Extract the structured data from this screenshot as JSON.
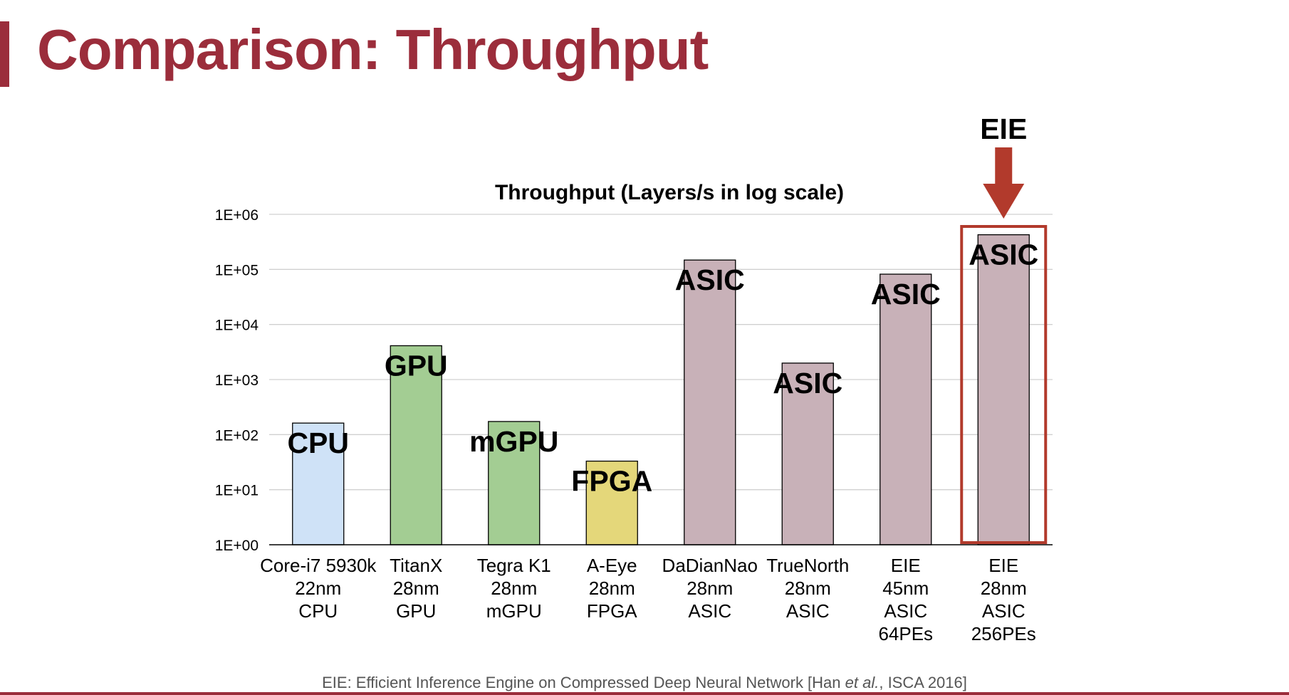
{
  "slide": {
    "title": "Comparison: Throughput",
    "footer_prefix": "EIE: Efficient Inference Engine on Compressed Deep Neural Network [Han ",
    "footer_italic": "et al.",
    "footer_suffix": ", ISCA 2016]"
  },
  "highlight": {
    "label": "EIE",
    "category_index": 7,
    "color": "#b23a2c"
  },
  "chart_data": {
    "type": "bar",
    "title": "Throughput (Layers/s in log scale)",
    "xlabel": "",
    "ylabel": "",
    "y_scale": "log",
    "ylim": [
      1,
      1000000
    ],
    "y_ticks": [
      1,
      10,
      100,
      1000,
      10000,
      100000,
      1000000
    ],
    "y_tick_labels": [
      "1E+00",
      "1E+01",
      "1E+02",
      "1E+03",
      "1E+04",
      "1E+05",
      "1E+06"
    ],
    "grid": true,
    "categories": [
      [
        "Core-i7 5930k",
        "22nm",
        "CPU"
      ],
      [
        "TitanX",
        "28nm",
        "GPU"
      ],
      [
        "Tegra K1",
        "28nm",
        "mGPU"
      ],
      [
        "A-Eye",
        "28nm",
        "FPGA"
      ],
      [
        "DaDianNao",
        "28nm",
        "ASIC"
      ],
      [
        "TrueNorth",
        "28nm",
        "ASIC"
      ],
      [
        "EIE",
        "45nm",
        "ASIC",
        "64PEs"
      ],
      [
        "EIE",
        "28nm",
        "ASIC",
        "256PEs"
      ]
    ],
    "values": [
      162,
      4115,
      173,
      33,
      147938,
      1989,
      81967,
      426230
    ],
    "bar_labels": [
      "CPU",
      "GPU",
      "mGPU",
      "FPGA",
      "ASIC",
      "ASIC",
      "ASIC",
      "ASIC"
    ],
    "colors": [
      "#cfe2f7",
      "#a3cd93",
      "#a3cd93",
      "#e4d77a",
      "#c8b1b8",
      "#c8b1b8",
      "#c8b1b8",
      "#c8b1b8"
    ]
  }
}
